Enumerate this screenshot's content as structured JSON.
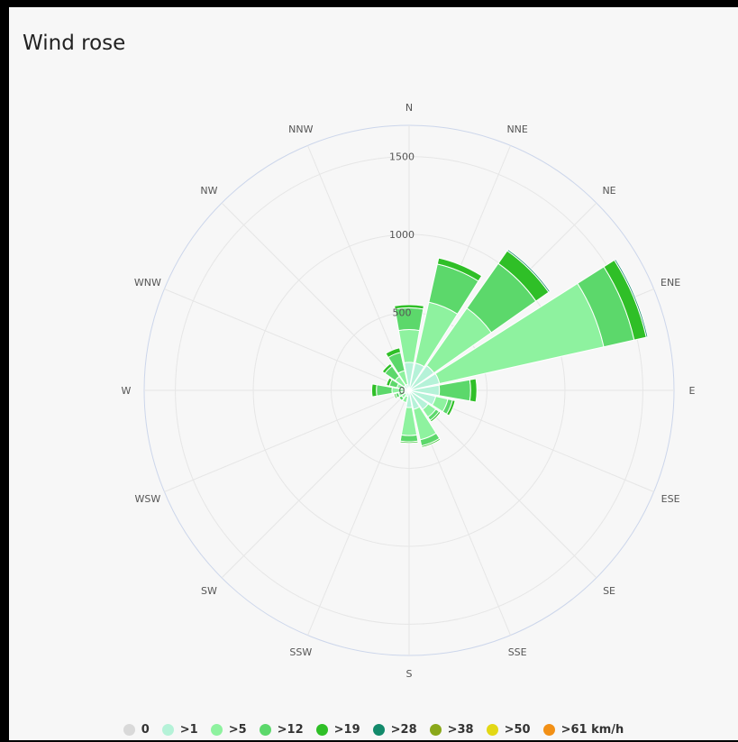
{
  "title": "Wind rose",
  "chart_data": {
    "type": "polar-stacked-bar",
    "title": "Wind rose",
    "directions": [
      "N",
      "NNE",
      "NE",
      "ENE",
      "E",
      "ESE",
      "SE",
      "SSE",
      "S",
      "SSW",
      "SW",
      "WSW",
      "W",
      "WNW",
      "NW",
      "NNW"
    ],
    "radial_ticks": [
      0,
      500,
      1000,
      1500
    ],
    "radial_max": 1700,
    "series": [
      {
        "name": "0",
        "color": "#d9d9d9",
        "values": [
          0,
          0,
          0,
          0,
          0,
          0,
          0,
          0,
          0,
          0,
          0,
          0,
          0,
          0,
          0,
          0
        ]
      },
      {
        "name": ">1",
        "color": "#b5f2d8",
        "values": [
          180,
          180,
          195,
          200,
          195,
          175,
          150,
          125,
          110,
          40,
          30,
          30,
          30,
          30,
          40,
          40
        ]
      },
      {
        "name": ">5",
        "color": "#8ef29f",
        "values": [
          210,
          400,
          450,
          1080,
          0,
          80,
          60,
          200,
          180,
          40,
          30,
          40,
          80,
          50,
          70,
          90
        ]
      },
      {
        "name": ">12",
        "color": "#5cd86b",
        "values": [
          140,
          250,
          350,
          200,
          200,
          30,
          25,
          40,
          40,
          0,
          20,
          20,
          100,
          50,
          80,
          120
        ]
      },
      {
        "name": ">19",
        "color": "#2fbf27",
        "values": [
          20,
          40,
          100,
          80,
          40,
          18,
          12,
          10,
          10,
          0,
          0,
          10,
          30,
          20,
          20,
          30
        ]
      },
      {
        "name": ">28",
        "color": "#138a6b",
        "values": [
          0,
          0,
          10,
          10,
          0,
          0,
          0,
          0,
          0,
          0,
          0,
          0,
          0,
          0,
          0,
          0
        ]
      },
      {
        "name": ">38",
        "color": "#8aa81a",
        "values": [
          0,
          0,
          0,
          0,
          0,
          0,
          0,
          0,
          0,
          0,
          0,
          0,
          0,
          0,
          0,
          0
        ]
      },
      {
        "name": ">50",
        "color": "#e3d815",
        "values": [
          0,
          0,
          0,
          0,
          0,
          0,
          0,
          0,
          0,
          0,
          0,
          0,
          0,
          0,
          0,
          0
        ]
      },
      {
        "name": ">61 km/h",
        "color": "#f29016",
        "values": [
          0,
          0,
          0,
          0,
          0,
          0,
          0,
          0,
          0,
          0,
          0,
          0,
          0,
          0,
          0,
          0
        ]
      }
    ],
    "legend_position": "bottom-center",
    "grid": true
  }
}
